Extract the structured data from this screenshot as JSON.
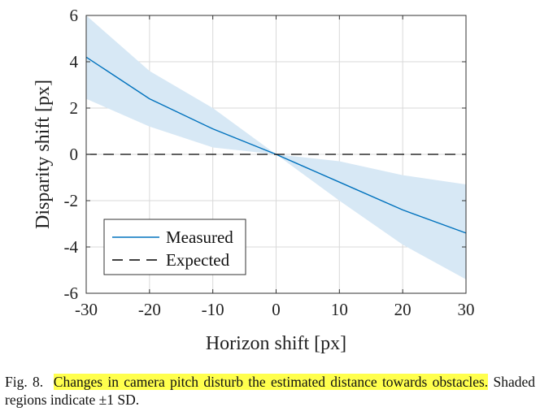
{
  "chart_data": {
    "type": "line",
    "title": "",
    "xlabel": "Horizon shift [px]",
    "ylabel": "Disparity shift [px]",
    "xlim": [
      -30,
      30
    ],
    "ylim": [
      -6,
      6
    ],
    "xticks": [
      -30,
      -20,
      -10,
      0,
      10,
      20,
      30
    ],
    "yticks": [
      -6,
      -4,
      -2,
      0,
      2,
      4,
      6
    ],
    "xtick_labels": [
      "-30",
      "-20",
      "-10",
      "0",
      "10",
      "20",
      "30"
    ],
    "ytick_labels": [
      "-6",
      "-4",
      "-2",
      "0",
      "2",
      "4",
      "6"
    ],
    "grid": true,
    "legend_position": "bottom-left",
    "x": [
      -30,
      -20,
      -10,
      0,
      10,
      20,
      30
    ],
    "series": [
      {
        "name": "Measured",
        "values": [
          4.2,
          2.4,
          1.1,
          0.0,
          -1.2,
          -2.4,
          -3.4
        ],
        "band_upper": [
          6.0,
          3.6,
          2.0,
          0.0,
          -0.3,
          -0.9,
          -1.3
        ],
        "band_lower": [
          2.4,
          1.2,
          0.3,
          0.0,
          -2.0,
          -3.9,
          -5.4
        ],
        "style": "solid",
        "color": "#0072bd",
        "band_color": "#d7e8f5"
      },
      {
        "name": "Expected",
        "values": [
          0,
          0,
          0,
          0,
          0,
          0,
          0
        ],
        "style": "dashed",
        "color": "#000000"
      }
    ]
  },
  "caption": {
    "prefix": "Fig. 8.",
    "highlight": "Changes in camera pitch disturb the estimated distance towards obstacles.",
    "rest": "Shaded regions indicate ±1 SD.",
    "highlight_color": "#ffff4d"
  }
}
